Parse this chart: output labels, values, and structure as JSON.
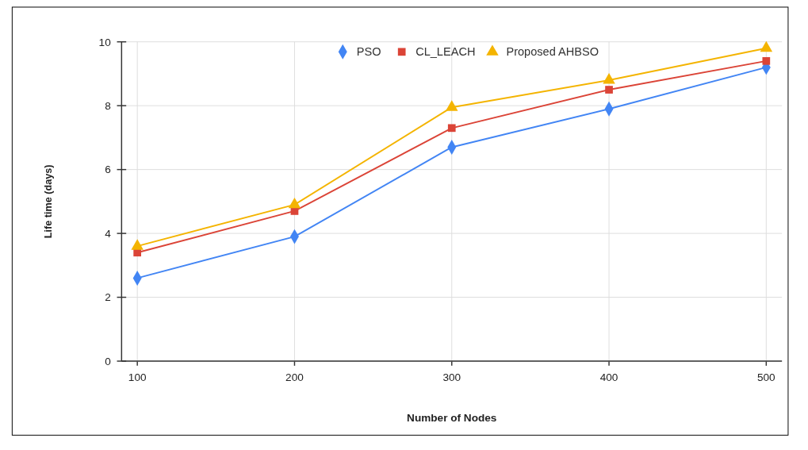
{
  "chart_data": {
    "type": "line",
    "xlabel": "Number of Nodes",
    "ylabel": "Life time (days)",
    "x": [
      100,
      200,
      300,
      400,
      500
    ],
    "series": [
      {
        "name": "PSO",
        "color": "#4285f4",
        "marker": "diamond",
        "values": [
          2.6,
          3.9,
          6.7,
          7.9,
          9.2
        ]
      },
      {
        "name": "CL_LEACH",
        "color": "#db4437",
        "marker": "square",
        "values": [
          3.4,
          4.7,
          7.3,
          8.5,
          9.4
        ]
      },
      {
        "name": "Proposed AHBSO",
        "color": "#f4b400",
        "marker": "triangle",
        "values": [
          3.6,
          4.9,
          7.95,
          8.8,
          9.8
        ]
      }
    ],
    "xlim": [
      90,
      510
    ],
    "xticks": [
      100,
      200,
      300,
      400,
      500
    ],
    "ylim": [
      0,
      10
    ],
    "yticks": [
      0,
      2,
      4,
      6,
      8,
      10
    ],
    "grid": true,
    "legend": "top",
    "line_style": "solid"
  }
}
